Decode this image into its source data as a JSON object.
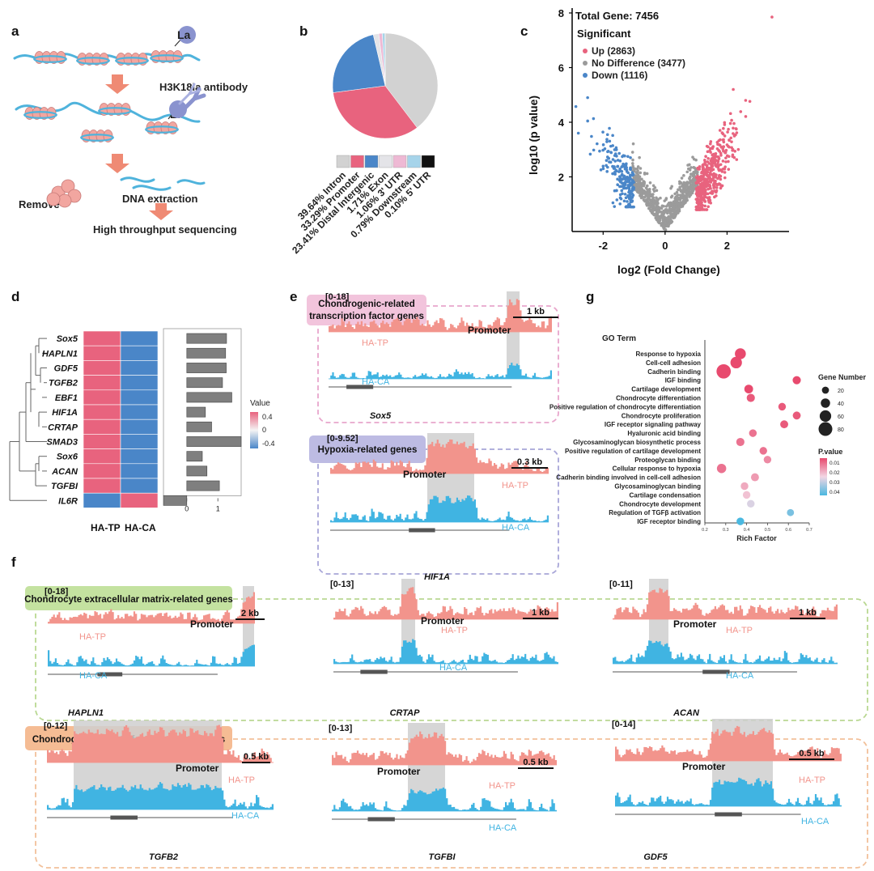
{
  "panel_letters": [
    "a",
    "b",
    "c",
    "d",
    "e",
    "f",
    "g"
  ],
  "panel_a": {
    "la_label": "La",
    "antibody_label": "H3K18la antibody",
    "remove_label": "Remove",
    "dna_label": "DNA extraction",
    "seq_label": "High throughput sequencing",
    "colors": {
      "nucleosome": "#f2a6a0",
      "dna": "#4fb3dc",
      "antibody": "#8a93cf",
      "arrow": "#ef8a74"
    }
  },
  "chart_data": [
    {
      "panel": "b",
      "type": "pie",
      "labels": [
        "39.64% Intron",
        "33.29% Promoter",
        "23.41% Distal Intergenic",
        "1.71% Exon",
        "1.06% 3' UTR",
        "0.79% Downstream",
        "0.10% 5' UTR"
      ],
      "values": [
        39.64,
        33.29,
        23.41,
        1.71,
        1.06,
        0.79,
        0.1
      ],
      "colors": [
        "#d2d2d2",
        "#e8637e",
        "#4a86c8",
        "#e4e4e8",
        "#eeb9d4",
        "#a6d4ea",
        "#111111"
      ],
      "legend": "bottom"
    },
    {
      "panel": "c",
      "type": "scatter",
      "annotations": [
        "Total Gene: 7456",
        "Significant"
      ],
      "series": [
        {
          "name": "Up (2863)",
          "color": "#e8637e",
          "count": 2863
        },
        {
          "name": "No Difference (3477)",
          "color": "#9b9b9b",
          "count": 3477
        },
        {
          "name": "Down (1116)",
          "color": "#4a86c8",
          "count": 1116
        }
      ],
      "xlabel": "log2 (Fold Change)",
      "ylabel": "log10 (p value)",
      "xlim": [
        -3,
        4
      ],
      "ylim": [
        0,
        8
      ],
      "xticks": [
        -2,
        0,
        2
      ],
      "yticks": [
        2,
        4,
        6,
        8
      ]
    },
    {
      "panel": "d",
      "type": "heatmap",
      "genes": [
        "Sox5",
        "HAPLN1",
        "GDF5",
        "TGFB2",
        "EBF1",
        "HIF1A",
        "CRTAP",
        "SMAD3",
        "Sox6",
        "ACAN",
        "TGFBI",
        "IL6R"
      ],
      "columns": [
        "HA-TP",
        "HA-CA"
      ],
      "values": [
        [
          0.4,
          -0.4
        ],
        [
          0.4,
          -0.4
        ],
        [
          0.4,
          -0.4
        ],
        [
          0.4,
          -0.4
        ],
        [
          0.4,
          -0.4
        ],
        [
          0.4,
          -0.4
        ],
        [
          0.4,
          -0.4
        ],
        [
          0.4,
          -0.4
        ],
        [
          0.4,
          -0.4
        ],
        [
          0.4,
          -0.4
        ],
        [
          0.4,
          -0.4
        ],
        [
          -0.4,
          0.4
        ]
      ],
      "bar_values": [
        1.28,
        1.25,
        1.27,
        1.15,
        1.45,
        0.6,
        0.8,
        1.75,
        0.5,
        0.65,
        1.05,
        -0.75
      ],
      "bar_xticks": [
        0,
        1
      ],
      "bar_xlim": [
        -0.75,
        1.75
      ],
      "legend_title": "Value",
      "legend_ticks": [
        "0.4",
        "0",
        "-0.4"
      ],
      "colors": {
        "high": "#e8637e",
        "low": "#4a86c8",
        "bar": "#7f7f7f"
      }
    },
    {
      "panel": "g",
      "type": "scatter",
      "subtype": "bubble",
      "title": "GO Term",
      "xlabel": "Rich Factor",
      "xlim": [
        0.2,
        0.7
      ],
      "xticks": [
        "0.2",
        "0.3",
        "0.4",
        "0.5",
        "0.6",
        "0.7"
      ],
      "terms": [
        {
          "term": "Response to hypoxia",
          "rich": 0.37,
          "n": 55,
          "p": 0.01
        },
        {
          "term": "Cell-cell adhesion",
          "rich": 0.35,
          "n": 60,
          "p": 0.01
        },
        {
          "term": "Cadherin binding",
          "rich": 0.29,
          "n": 85,
          "p": 0.01
        },
        {
          "term": "IGF binding",
          "rich": 0.64,
          "n": 30,
          "p": 0.01
        },
        {
          "term": "Cartilage development",
          "rich": 0.41,
          "n": 35,
          "p": 0.01
        },
        {
          "term": "Chondrocyte differentiation",
          "rich": 0.42,
          "n": 30,
          "p": 0.012
        },
        {
          "term": "Positive regulation of chondrocyte differentiation",
          "rich": 0.57,
          "n": 25,
          "p": 0.012
        },
        {
          "term": "Chondrocyte proliferation",
          "rich": 0.64,
          "n": 28,
          "p": 0.012
        },
        {
          "term": "IGF receptor signaling pathway",
          "rich": 0.58,
          "n": 28,
          "p": 0.012
        },
        {
          "term": "Hyaluronic acid binding",
          "rich": 0.43,
          "n": 25,
          "p": 0.015
        },
        {
          "term": "Glycosaminoglycan biosynthetic process",
          "rich": 0.37,
          "n": 30,
          "p": 0.015
        },
        {
          "term": "Positive regulation of cartilage development",
          "rich": 0.48,
          "n": 25,
          "p": 0.015
        },
        {
          "term": "Proteoglycan binding",
          "rich": 0.5,
          "n": 25,
          "p": 0.018
        },
        {
          "term": "Cellular response to hypoxia",
          "rich": 0.28,
          "n": 40,
          "p": 0.015
        },
        {
          "term": "Cadherin binding involved in cell-cell adhesion",
          "rich": 0.44,
          "n": 28,
          "p": 0.02
        },
        {
          "term": "Glycosaminoglycan binding",
          "rich": 0.39,
          "n": 25,
          "p": 0.022
        },
        {
          "term": "Cartilage condensation",
          "rich": 0.4,
          "n": 25,
          "p": 0.025
        },
        {
          "term": "Chondrocyte development",
          "rich": 0.42,
          "n": 25,
          "p": 0.03
        },
        {
          "term": "Regulation of TGFβ activation",
          "rich": 0.61,
          "n": 20,
          "p": 0.04
        },
        {
          "term": "IGF receptor binding",
          "rich": 0.37,
          "n": 25,
          "p": 0.045
        }
      ],
      "size_legend_title": "Gene Number",
      "size_legend": [
        20,
        40,
        60,
        80
      ],
      "color_legend_title": "P.value",
      "color_legend_ticks": [
        "0.01",
        "0.02",
        "0.03",
        "0.04"
      ],
      "colors": {
        "low_p": "#e84a6e",
        "high_p": "#4ab8e0"
      }
    }
  ],
  "tracks": {
    "e_title1": "Chondrogenic-related",
    "e_title2": "transcription factor genes",
    "e_hypoxia_title": "Hypoxia-related genes",
    "f_ecm_title": "Chondrocyte extracellular matrix-related genes",
    "f_gf_title": "Chondrogenic growth factors related genes",
    "promoter_label": "Promoter",
    "tp_label": "HA-TP",
    "ca_label": "HA-CA",
    "colors": {
      "tp": "#f2948c",
      "ca": "#40b4e2",
      "promoter": "#cfcfcf"
    },
    "panels": [
      {
        "id": "sox5",
        "range": "[0-18]",
        "scale": "1 kb",
        "gene": "Sox5"
      },
      {
        "id": "hif1a",
        "range": "[0-9.52]",
        "scale": "0.3 kb",
        "gene": "HIF1A"
      },
      {
        "id": "hapln1",
        "range": "[0-18]",
        "scale": "2 kb",
        "gene": "HAPLN1"
      },
      {
        "id": "crtap",
        "range": "[0-13]",
        "scale": "1 kb",
        "gene": "CRTAP"
      },
      {
        "id": "acan",
        "range": "[0-11]",
        "scale": "1 kb",
        "gene": "ACAN"
      },
      {
        "id": "tgfb2",
        "range": "[0-12]",
        "scale": "0.5 kb",
        "gene": "TGFB2"
      },
      {
        "id": "tgfbi",
        "range": "[0-13]",
        "scale": "0.5 kb",
        "gene": "TGFBI"
      },
      {
        "id": "gdf5",
        "range": "[0-14]",
        "scale": "0.5 kb",
        "gene": "GDF5"
      }
    ]
  }
}
